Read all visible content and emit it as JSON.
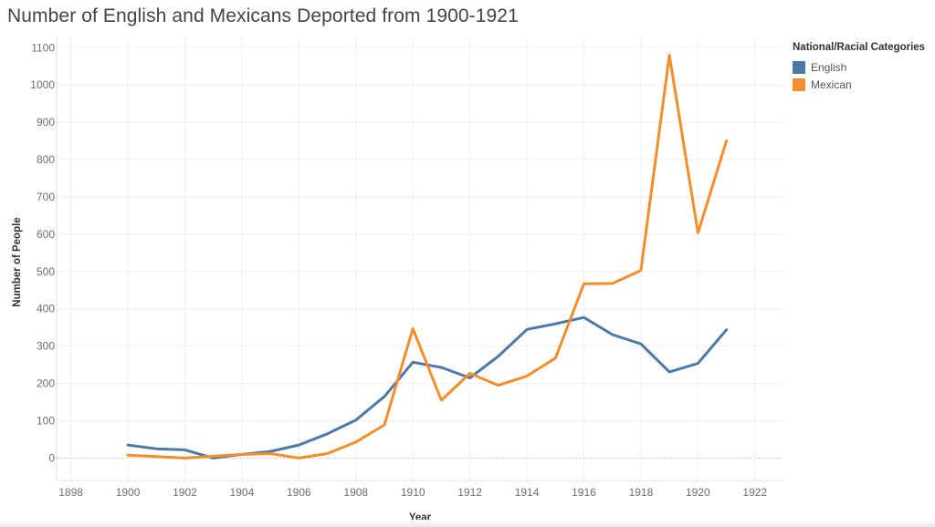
{
  "chart_data": {
    "type": "line",
    "title": "Number of English and Mexicans Deported from 1900-1921",
    "xlabel": "Year",
    "ylabel": "Number of People",
    "xlim": [
      1897.5,
      1923
    ],
    "ylim": [
      -60,
      1130
    ],
    "x_ticks": [
      1898,
      1900,
      1902,
      1904,
      1906,
      1908,
      1910,
      1912,
      1914,
      1916,
      1918,
      1920,
      1922
    ],
    "y_ticks": [
      0,
      100,
      200,
      300,
      400,
      500,
      600,
      700,
      800,
      900,
      1000,
      1100
    ],
    "grid": true,
    "legend_position": "right",
    "legend_title": "National/Racial Categories",
    "x": [
      1900,
      1901,
      1902,
      1903,
      1904,
      1905,
      1906,
      1907,
      1908,
      1909,
      1910,
      1911,
      1912,
      1913,
      1914,
      1915,
      1916,
      1917,
      1918,
      1919,
      1920,
      1921
    ],
    "series": [
      {
        "name": "English",
        "color": "#4e79a7",
        "values": [
          35,
          25,
          22,
          0,
          10,
          18,
          35,
          65,
          102,
          165,
          257,
          243,
          215,
          273,
          345,
          360,
          377,
          331,
          306,
          231,
          254,
          344
        ]
      },
      {
        "name": "Mexican",
        "color": "#f28e2b",
        "values": [
          8,
          4,
          0,
          5,
          10,
          12,
          0,
          12,
          43,
          89,
          347,
          155,
          227,
          195,
          220,
          268,
          467,
          468,
          503,
          1080,
          604,
          850
        ]
      }
    ]
  }
}
